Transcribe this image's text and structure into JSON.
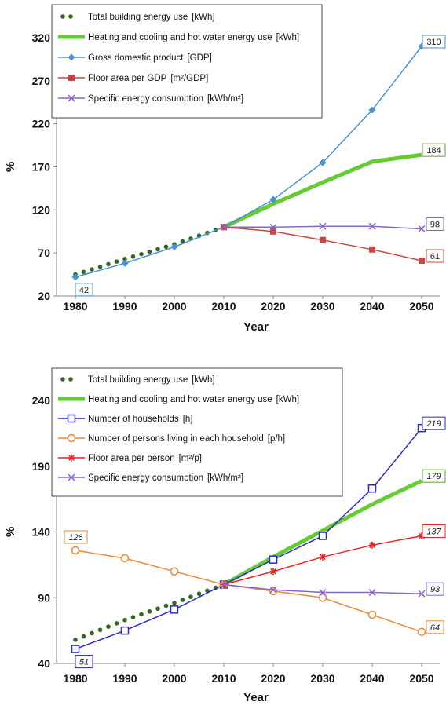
{
  "chart_data": [
    {
      "type": "line",
      "xlabel": "Year",
      "ylabel": "%",
      "ylim": [
        20,
        320
      ],
      "yticks": [
        20,
        70,
        120,
        170,
        220,
        270,
        320
      ],
      "x": [
        1980,
        1990,
        2000,
        2010,
        2020,
        2030,
        2040,
        2050
      ],
      "legend_position": "top-left",
      "series": [
        {
          "key": "total",
          "name": "Total building energy use",
          "unit": "[kWh]",
          "color": "#2e6b1e",
          "style": "dotted",
          "x": [
            1980,
            1990,
            2000,
            2010
          ],
          "values": [
            45,
            63,
            80,
            100
          ],
          "end_label": ""
        },
        {
          "key": "heat",
          "name": "Heating and cooling and hot water energy use",
          "unit": "[kWh]",
          "color": "#66cc33",
          "style": "thick",
          "x": [
            2010,
            2020,
            2030,
            2040,
            2050
          ],
          "values": [
            100,
            127,
            152,
            176,
            184
          ],
          "end_label": "184",
          "label_color": "#55aa22"
        },
        {
          "key": "gdp",
          "name": "Gross domestic product",
          "unit": "[GDP]",
          "color": "#4a90d9",
          "style": "line",
          "marker": "diamond",
          "x": [
            1980,
            1990,
            2000,
            2010,
            2020,
            2030,
            2040,
            2050
          ],
          "values": [
            42,
            58,
            77,
            100,
            132,
            175,
            236,
            310
          ],
          "end_label": "310",
          "start_label": "42",
          "label_color": "#4a90d9"
        },
        {
          "key": "floor",
          "name": "Floor area per GDP",
          "unit": "[m²/GDP]",
          "color": "#cc4444",
          "style": "line",
          "marker": "square",
          "x": [
            2010,
            2020,
            2030,
            2040,
            2050
          ],
          "values": [
            100,
            95,
            85,
            74,
            61
          ],
          "end_label": "61",
          "label_color": "#cc4444"
        },
        {
          "key": "spec",
          "name": "Specific energy consumption",
          "unit": "[kWh/m²]",
          "color": "#8866cc",
          "style": "line",
          "marker": "x",
          "x": [
            2010,
            2020,
            2030,
            2040,
            2050
          ],
          "values": [
            100,
            100,
            101,
            101,
            98
          ],
          "end_label": "98",
          "label_color": "#8866cc"
        }
      ]
    },
    {
      "type": "line",
      "xlabel": "Year",
      "ylabel": "%",
      "ylim": [
        40,
        240
      ],
      "yticks": [
        40,
        90,
        140,
        190,
        240
      ],
      "x": [
        1980,
        1990,
        2000,
        2010,
        2020,
        2030,
        2040,
        2050
      ],
      "legend_position": "top-left",
      "series": [
        {
          "key": "total",
          "name": "Total building energy use",
          "unit": "[kWh]",
          "color": "#2e6b1e",
          "style": "dotted",
          "x": [
            1980,
            1990,
            2000,
            2010
          ],
          "values": [
            58,
            73,
            86,
            100
          ],
          "end_label": ""
        },
        {
          "key": "heat",
          "name": "Heating and cooling and hot water energy use",
          "unit": "[kWh]",
          "color": "#66cc33",
          "style": "thick",
          "x": [
            2010,
            2020,
            2030,
            2040,
            2050
          ],
          "values": [
            100,
            121,
            141,
            161,
            179
          ],
          "end_label": "179",
          "label_color": "#55aa22"
        },
        {
          "key": "hh",
          "name": "Number of households",
          "unit": "[h]",
          "color": "#2a2acc",
          "style": "line",
          "marker": "open-square",
          "x": [
            1980,
            1990,
            2000,
            2010,
            2020,
            2030,
            2040,
            2050
          ],
          "values": [
            51,
            65,
            81,
            100,
            119,
            137,
            173,
            219
          ],
          "end_label": "219",
          "start_label": "51",
          "label_color": "#2a2acc"
        },
        {
          "key": "persons",
          "name": "Number of persons living in each household",
          "unit": "[p/h]",
          "color": "#ee8833",
          "style": "line",
          "marker": "open-circle",
          "x": [
            1980,
            1990,
            2000,
            2010,
            2020,
            2030,
            2040,
            2050
          ],
          "values": [
            126,
            120,
            110,
            100,
            95,
            90,
            77,
            64
          ],
          "end_label": "64",
          "start_label": "126",
          "label_color": "#ee8833"
        },
        {
          "key": "fap",
          "name": "Floor area per person",
          "unit": "[m²/p]",
          "color": "#ee2222",
          "style": "line",
          "marker": "star",
          "x": [
            2010,
            2020,
            2030,
            2040,
            2050
          ],
          "values": [
            100,
            110,
            121,
            130,
            137
          ],
          "end_label": "137",
          "label_color": "#ee2222"
        },
        {
          "key": "spec",
          "name": "Specific energy consumption",
          "unit": "[kWh/m²]",
          "color": "#8866cc",
          "style": "line",
          "marker": "x",
          "x": [
            2010,
            2020,
            2030,
            2040,
            2050
          ],
          "values": [
            100,
            96,
            94,
            94,
            93
          ],
          "end_label": "93",
          "label_color": "#8866cc"
        }
      ]
    }
  ]
}
